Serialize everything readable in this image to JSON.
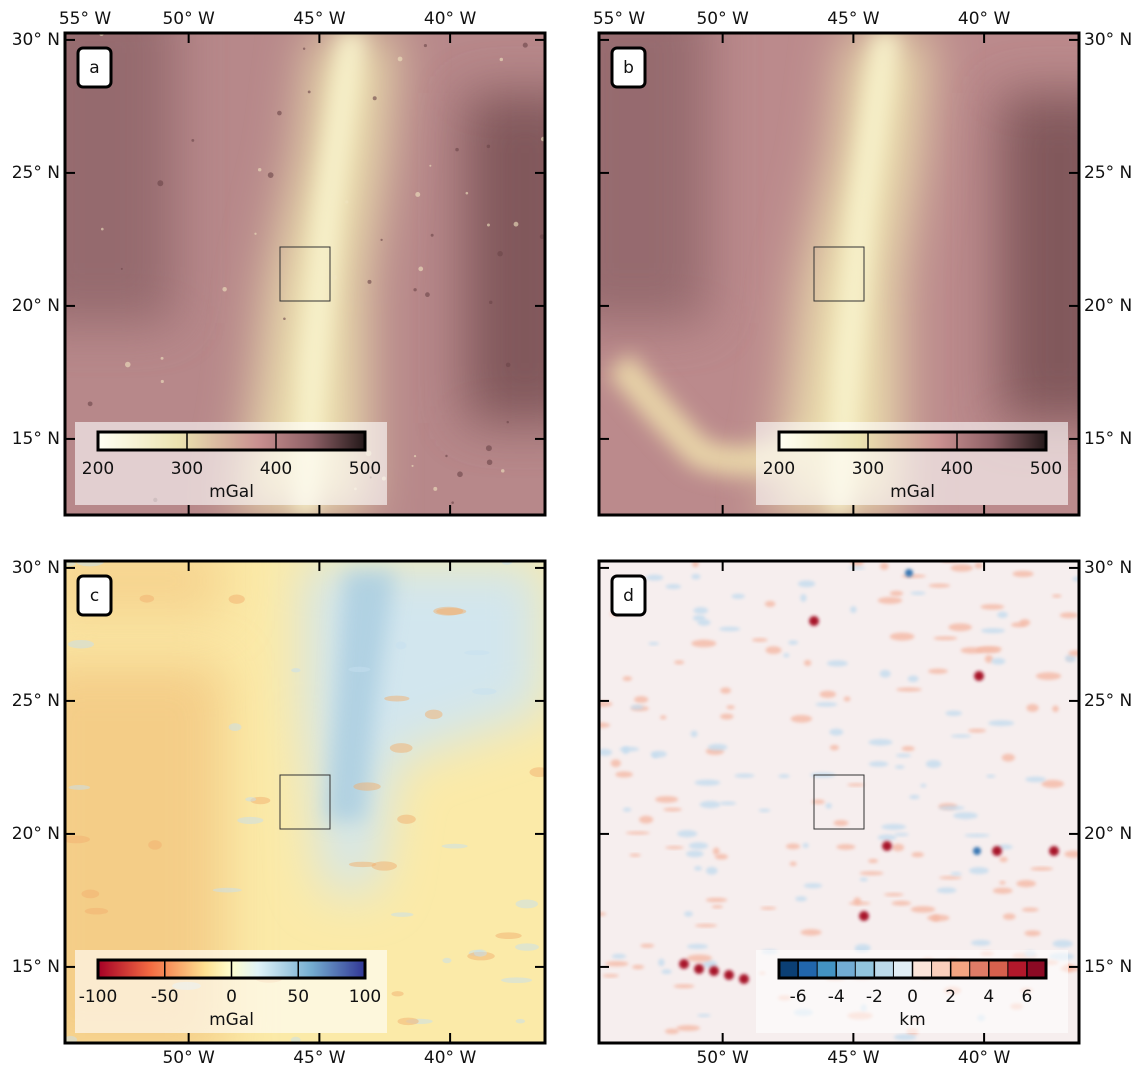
{
  "axes": {
    "xlim": [
      -54.73,
      -36.37
    ],
    "ylim": [
      12.14,
      30.26
    ],
    "xticks_top": [
      {
        "value": -55,
        "label": "55° W"
      },
      {
        "value": -50,
        "label": "50° W"
      },
      {
        "value": -45,
        "label": "45° W"
      },
      {
        "value": -40,
        "label": "40° W"
      }
    ],
    "xticks_bottom": [
      {
        "value": -50,
        "label": "50° W"
      },
      {
        "value": -45,
        "label": "45° W"
      },
      {
        "value": -40,
        "label": "40° W"
      }
    ],
    "yticks": [
      {
        "value": 30,
        "label": "30° N"
      },
      {
        "value": 25,
        "label": "25° N"
      },
      {
        "value": 20,
        "label": "20° N"
      },
      {
        "value": 15,
        "label": "15° N"
      }
    ]
  },
  "panels": [
    {
      "label": "a",
      "colorbar": {
        "lim": [
          200,
          500
        ],
        "ticks": [
          200,
          300,
          400,
          500
        ],
        "unit": "mGal"
      }
    },
    {
      "label": "b",
      "colorbar": {
        "lim": [
          200,
          500
        ],
        "ticks": [
          200,
          300,
          400,
          500
        ],
        "unit": "mGal"
      }
    },
    {
      "label": "c",
      "colorbar": {
        "lim": [
          -100,
          100
        ],
        "ticks": [
          -100,
          -50,
          0,
          50,
          100
        ],
        "unit": "mGal"
      }
    },
    {
      "label": "d",
      "colorbar": {
        "lim": [
          -7,
          7
        ],
        "ticks": [
          -6,
          -4,
          -2,
          0,
          2,
          4,
          6
        ],
        "unit": "km"
      }
    }
  ]
}
